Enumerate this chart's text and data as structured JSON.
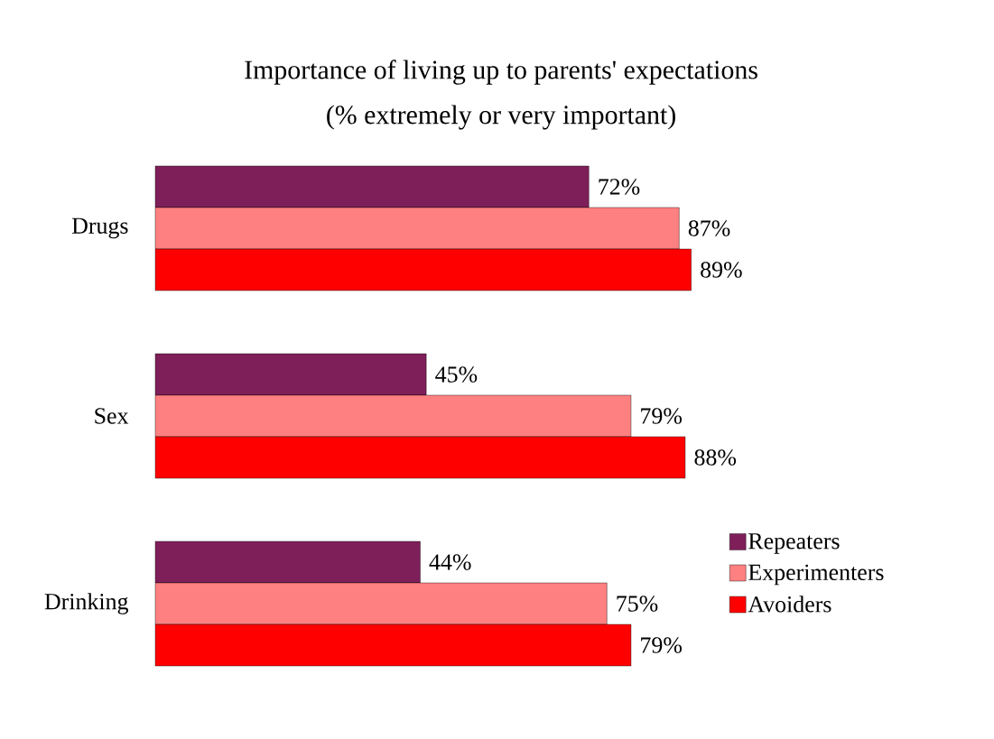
{
  "chart_data": {
    "type": "bar",
    "orientation": "horizontal",
    "title": "Importance of living up to parents' expectations",
    "subtitle": "(% extremely or very important)",
    "categories": [
      "Drugs",
      "Sex",
      "Drinking"
    ],
    "legend": "bottom right",
    "series": [
      {
        "name": "Repeaters",
        "color": "#7f1f5a",
        "values": [
          72,
          45,
          44
        ],
        "value_labels": [
          "72%",
          "45%",
          "44%"
        ]
      },
      {
        "name": "Experimenters",
        "color": "#ff8080",
        "values": [
          87,
          79,
          75
        ],
        "value_labels": [
          "87%",
          "79%",
          "75%"
        ]
      },
      {
        "name": "Avoiders",
        "color": "#ff0000",
        "values": [
          89,
          88,
          79
        ],
        "value_labels": [
          "89%",
          "88%",
          "79%"
        ]
      }
    ]
  }
}
